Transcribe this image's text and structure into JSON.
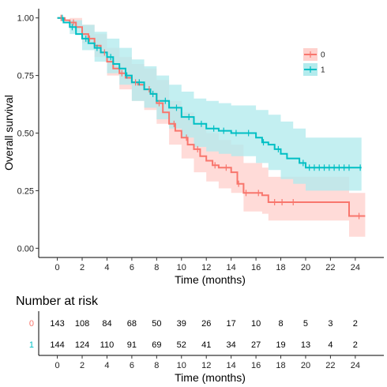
{
  "chart_data": [
    {
      "type": "line",
      "subtype": "kaplan-meier",
      "title": "",
      "xlabel": "Time (months)",
      "ylabel": "Overall survival",
      "xlim": [
        -1.5,
        26.3
      ],
      "ylim": [
        -0.04,
        1.04
      ],
      "xticks": [
        0,
        2,
        4,
        6,
        8,
        10,
        12,
        14,
        16,
        18,
        20,
        22,
        24
      ],
      "yticks": [
        "0.00",
        "0.25",
        "0.50",
        "0.75",
        "1.00"
      ],
      "grid": false,
      "legend": {
        "position": "right",
        "entries": [
          "0",
          "1"
        ]
      },
      "series": [
        {
          "name": "0",
          "color": "#F8766D",
          "band_color": "#FFD1CD",
          "steps": [
            [
              0,
              1.0
            ],
            [
              0.6,
              0.99
            ],
            [
              1.0,
              0.98
            ],
            [
              1.5,
              0.96
            ],
            [
              2.0,
              0.93
            ],
            [
              2.5,
              0.91
            ],
            [
              3.0,
              0.88
            ],
            [
              3.5,
              0.85
            ],
            [
              4.0,
              0.81
            ],
            [
              4.5,
              0.78
            ],
            [
              5.0,
              0.76
            ],
            [
              5.5,
              0.74
            ],
            [
              6.0,
              0.72
            ],
            [
              6.5,
              0.71
            ],
            [
              7.0,
              0.69
            ],
            [
              7.5,
              0.67
            ],
            [
              8.0,
              0.63
            ],
            [
              8.5,
              0.59
            ],
            [
              9.0,
              0.54
            ],
            [
              9.5,
              0.51
            ],
            [
              10.0,
              0.48
            ],
            [
              10.5,
              0.45
            ],
            [
              11.0,
              0.43
            ],
            [
              11.5,
              0.4
            ],
            [
              12.0,
              0.38
            ],
            [
              12.5,
              0.36
            ],
            [
              13.0,
              0.35
            ],
            [
              14.0,
              0.33
            ],
            [
              14.5,
              0.28
            ],
            [
              15.0,
              0.24
            ],
            [
              16.5,
              0.23
            ],
            [
              17.0,
              0.2
            ],
            [
              18.5,
              0.2
            ],
            [
              23.5,
              0.14
            ],
            [
              24.8,
              0.14
            ]
          ],
          "lower": [
            [
              0,
              1.0
            ],
            [
              1.0,
              0.96
            ],
            [
              2.0,
              0.89
            ],
            [
              3.0,
              0.83
            ],
            [
              4.0,
              0.75
            ],
            [
              5.0,
              0.69
            ],
            [
              6.0,
              0.64
            ],
            [
              7.0,
              0.6
            ],
            [
              8.0,
              0.54
            ],
            [
              9.0,
              0.45
            ],
            [
              10.0,
              0.39
            ],
            [
              11.0,
              0.33
            ],
            [
              12.0,
              0.29
            ],
            [
              13.0,
              0.26
            ],
            [
              14.0,
              0.24
            ],
            [
              15.0,
              0.16
            ],
            [
              16.5,
              0.15
            ],
            [
              17.0,
              0.12
            ],
            [
              18.5,
              0.12
            ],
            [
              23.5,
              0.05
            ],
            [
              24.8,
              0.05
            ]
          ],
          "upper": [
            [
              0,
              1.0
            ],
            [
              1.0,
              1.0
            ],
            [
              2.0,
              0.97
            ],
            [
              3.0,
              0.93
            ],
            [
              4.0,
              0.87
            ],
            [
              5.0,
              0.83
            ],
            [
              6.0,
              0.8
            ],
            [
              7.0,
              0.78
            ],
            [
              8.0,
              0.73
            ],
            [
              9.0,
              0.64
            ],
            [
              10.0,
              0.59
            ],
            [
              11.0,
              0.54
            ],
            [
              12.0,
              0.5
            ],
            [
              13.0,
              0.47
            ],
            [
              14.0,
              0.45
            ],
            [
              15.0,
              0.37
            ],
            [
              16.5,
              0.35
            ],
            [
              17.0,
              0.31
            ],
            [
              18.5,
              0.31
            ],
            [
              23.5,
              0.24
            ],
            [
              24.8,
              0.24
            ]
          ],
          "censor_times": [
            0.3,
            1.3,
            2.6,
            3.8,
            5.2,
            6.3,
            7.4,
            8.2,
            9.4,
            10.4,
            11.3,
            12.7,
            13.6,
            14.6,
            15.2,
            16.2,
            17.5,
            18.1,
            19.0,
            24.3
          ]
        },
        {
          "name": "1",
          "color": "#00BFC4",
          "band_color": "#B2EBED",
          "steps": [
            [
              0,
              1.0
            ],
            [
              0.5,
              0.98
            ],
            [
              1.0,
              0.96
            ],
            [
              1.5,
              0.93
            ],
            [
              2.0,
              0.91
            ],
            [
              2.5,
              0.89
            ],
            [
              3.0,
              0.87
            ],
            [
              3.5,
              0.85
            ],
            [
              4.0,
              0.83
            ],
            [
              4.5,
              0.8
            ],
            [
              5.0,
              0.78
            ],
            [
              5.5,
              0.75
            ],
            [
              6.0,
              0.72
            ],
            [
              7.0,
              0.69
            ],
            [
              7.5,
              0.67
            ],
            [
              8.0,
              0.64
            ],
            [
              9.0,
              0.61
            ],
            [
              10.0,
              0.57
            ],
            [
              11.0,
              0.54
            ],
            [
              12.0,
              0.52
            ],
            [
              13.0,
              0.51
            ],
            [
              14.0,
              0.5
            ],
            [
              16.0,
              0.48
            ],
            [
              16.5,
              0.46
            ],
            [
              17.0,
              0.45
            ],
            [
              17.5,
              0.43
            ],
            [
              18.0,
              0.41
            ],
            [
              18.5,
              0.39
            ],
            [
              19.5,
              0.37
            ],
            [
              20.0,
              0.35
            ],
            [
              24.5,
              0.35
            ]
          ],
          "lower": [
            [
              0,
              1.0
            ],
            [
              1.0,
              0.93
            ],
            [
              2.0,
              0.86
            ],
            [
              3.0,
              0.81
            ],
            [
              4.0,
              0.76
            ],
            [
              5.0,
              0.71
            ],
            [
              6.0,
              0.64
            ],
            [
              7.0,
              0.61
            ],
            [
              8.0,
              0.56
            ],
            [
              9.0,
              0.52
            ],
            [
              10.0,
              0.48
            ],
            [
              11.0,
              0.44
            ],
            [
              12.0,
              0.42
            ],
            [
              13.0,
              0.41
            ],
            [
              14.0,
              0.4
            ],
            [
              16.0,
              0.37
            ],
            [
              17.0,
              0.34
            ],
            [
              18.0,
              0.3
            ],
            [
              19.0,
              0.28
            ],
            [
              20.0,
              0.25
            ],
            [
              24.5,
              0.25
            ]
          ],
          "upper": [
            [
              0,
              1.0
            ],
            [
              1.0,
              0.99
            ],
            [
              2.0,
              0.97
            ],
            [
              3.0,
              0.94
            ],
            [
              4.0,
              0.91
            ],
            [
              5.0,
              0.87
            ],
            [
              6.0,
              0.82
            ],
            [
              7.0,
              0.79
            ],
            [
              8.0,
              0.75
            ],
            [
              9.0,
              0.71
            ],
            [
              10.0,
              0.68
            ],
            [
              11.0,
              0.65
            ],
            [
              12.0,
              0.64
            ],
            [
              13.0,
              0.63
            ],
            [
              14.0,
              0.62
            ],
            [
              16.0,
              0.6
            ],
            [
              17.0,
              0.58
            ],
            [
              18.0,
              0.55
            ],
            [
              19.0,
              0.52
            ],
            [
              20.0,
              0.48
            ],
            [
              24.5,
              0.48
            ]
          ],
          "censor_times": [
            0.4,
            1.2,
            2.3,
            3.2,
            4.3,
            5.6,
            6.6,
            7.7,
            8.7,
            9.6,
            10.6,
            11.6,
            12.6,
            13.4,
            14.4,
            15.4,
            16.6,
            17.8,
            19.8,
            20.3,
            20.7,
            21.1,
            21.5,
            21.9,
            22.3,
            22.7,
            23.1,
            23.5,
            24.4
          ]
        }
      ]
    },
    {
      "type": "table",
      "title": "Number at risk",
      "xlabel": "Time (months)",
      "times": [
        0,
        2,
        4,
        6,
        8,
        10,
        12,
        14,
        16,
        18,
        20,
        22,
        24
      ],
      "rows": [
        {
          "label": "0",
          "color": "#F8766D",
          "values": [
            143,
            108,
            84,
            68,
            50,
            39,
            26,
            17,
            10,
            8,
            5,
            3,
            2
          ]
        },
        {
          "label": "1",
          "color": "#00BFC4",
          "values": [
            144,
            124,
            110,
            91,
            69,
            52,
            41,
            34,
            27,
            19,
            13,
            4,
            2
          ]
        }
      ]
    }
  ]
}
